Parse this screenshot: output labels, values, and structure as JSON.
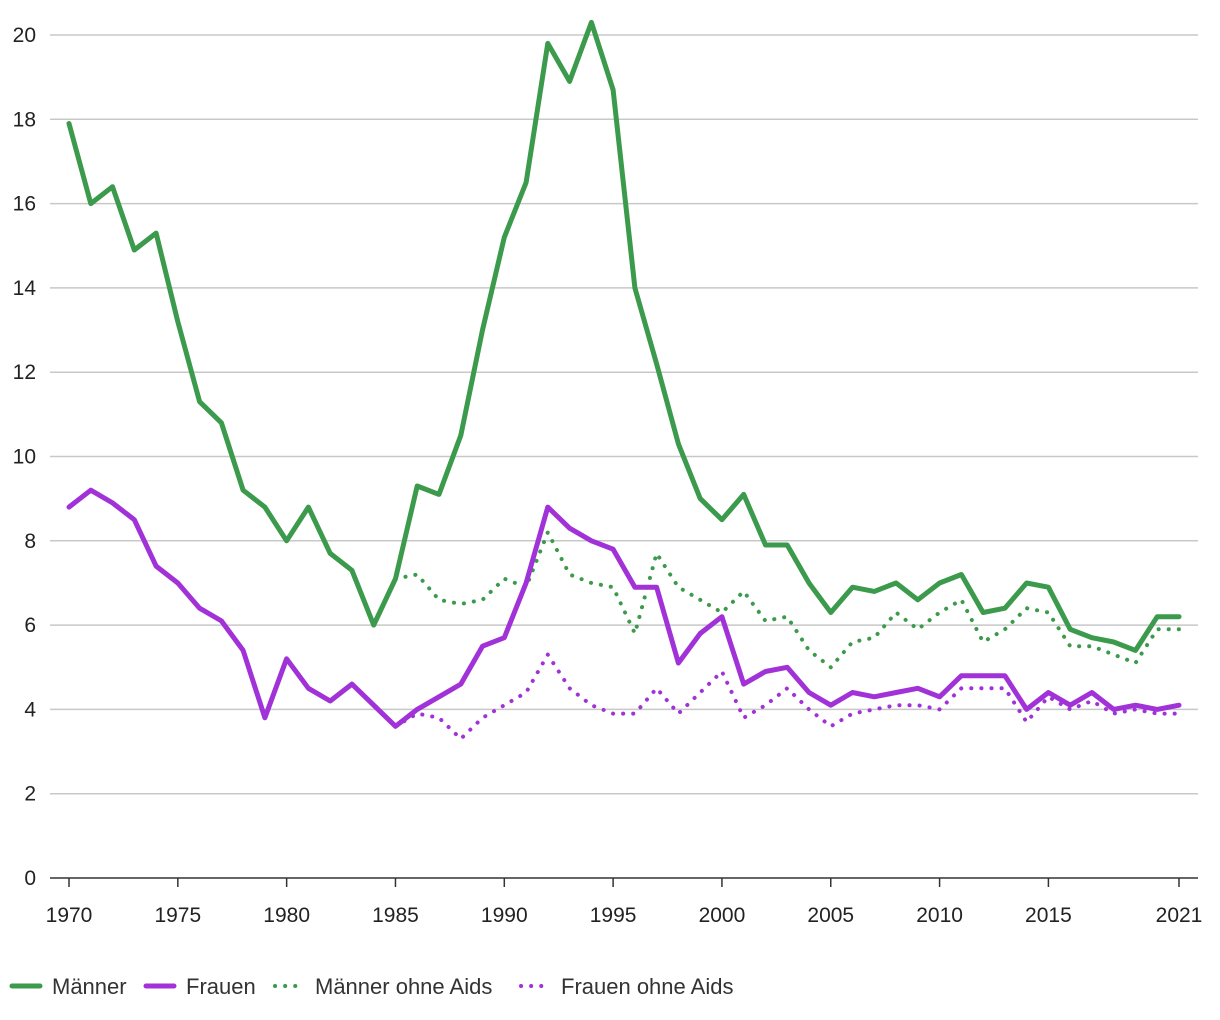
{
  "chart_data": {
    "type": "line",
    "title": "",
    "xlabel": "",
    "ylabel": "",
    "xlim": [
      1970,
      2021
    ],
    "ylim": [
      0,
      20.5
    ],
    "grid": true,
    "legend_position": "bottom-left",
    "x_ticks": [
      1970,
      1975,
      1980,
      1985,
      1990,
      1995,
      2000,
      2005,
      2010,
      2015,
      2021
    ],
    "y_ticks": [
      0,
      2,
      4,
      6,
      8,
      10,
      12,
      14,
      16,
      18,
      20
    ],
    "series": [
      {
        "name": "Männer",
        "color": "#3c9a4c",
        "style": "solid",
        "x": [
          1970,
          1971,
          1972,
          1973,
          1974,
          1975,
          1976,
          1977,
          1978,
          1979,
          1980,
          1981,
          1982,
          1983,
          1984,
          1985,
          1986,
          1987,
          1988,
          1989,
          1990,
          1991,
          1992,
          1993,
          1994,
          1995,
          1996,
          1997,
          1998,
          1999,
          2000,
          2001,
          2002,
          2003,
          2004,
          2005,
          2006,
          2007,
          2008,
          2009,
          2010,
          2011,
          2012,
          2013,
          2014,
          2015,
          2016,
          2017,
          2018,
          2019,
          2020,
          2021
        ],
        "values": [
          17.9,
          16.0,
          16.4,
          14.9,
          15.3,
          13.2,
          11.3,
          10.8,
          9.2,
          8.8,
          8.0,
          8.8,
          7.7,
          7.3,
          6.0,
          7.1,
          9.3,
          9.1,
          10.5,
          13.0,
          15.2,
          16.5,
          19.8,
          18.9,
          20.3,
          18.7,
          14.0,
          12.2,
          10.3,
          9.0,
          8.5,
          9.1,
          7.9,
          7.9,
          7.0,
          6.3,
          6.9,
          6.8,
          7.0,
          6.6,
          7.0,
          7.2,
          6.3,
          6.4,
          7.0,
          6.9,
          5.9,
          5.7,
          5.6,
          5.4,
          6.2,
          6.2
        ]
      },
      {
        "name": "Frauen",
        "color": "#a132d8",
        "style": "solid",
        "x": [
          1970,
          1971,
          1972,
          1973,
          1974,
          1975,
          1976,
          1977,
          1978,
          1979,
          1980,
          1981,
          1982,
          1983,
          1984,
          1985,
          1986,
          1987,
          1988,
          1989,
          1990,
          1991,
          1992,
          1993,
          1994,
          1995,
          1996,
          1997,
          1998,
          1999,
          2000,
          2001,
          2002,
          2003,
          2004,
          2005,
          2006,
          2007,
          2008,
          2009,
          2010,
          2011,
          2012,
          2013,
          2014,
          2015,
          2016,
          2017,
          2018,
          2019,
          2020,
          2021
        ],
        "values": [
          8.8,
          9.2,
          8.9,
          8.5,
          7.4,
          7.0,
          6.4,
          6.1,
          5.4,
          3.8,
          5.2,
          4.5,
          4.2,
          4.6,
          4.1,
          3.6,
          4.0,
          4.3,
          4.6,
          5.5,
          5.7,
          7.0,
          8.8,
          8.3,
          8.0,
          7.8,
          6.9,
          6.9,
          5.1,
          5.8,
          6.2,
          4.6,
          4.9,
          5.0,
          4.4,
          4.1,
          4.4,
          4.3,
          4.4,
          4.5,
          4.3,
          4.8,
          4.8,
          4.8,
          4.0,
          4.4,
          4.1,
          4.4,
          4.0,
          4.1,
          4.0,
          4.1
        ]
      },
      {
        "name": "Männer ohne Aids",
        "color": "#3c9a4c",
        "style": "dotted",
        "x": [
          1985,
          1986,
          1987,
          1988,
          1989,
          1990,
          1991,
          1992,
          1993,
          1994,
          1995,
          1996,
          1997,
          1998,
          1999,
          2000,
          2001,
          2002,
          2003,
          2004,
          2005,
          2006,
          2007,
          2008,
          2009,
          2010,
          2011,
          2012,
          2013,
          2014,
          2015,
          2016,
          2017,
          2018,
          2019,
          2020,
          2021
        ],
        "values": [
          7.1,
          7.2,
          6.6,
          6.5,
          6.6,
          7.1,
          6.9,
          8.2,
          7.2,
          7.0,
          6.9,
          5.8,
          7.7,
          6.9,
          6.6,
          6.3,
          6.8,
          6.1,
          6.2,
          5.4,
          5.0,
          5.6,
          5.7,
          6.3,
          5.9,
          6.3,
          6.6,
          5.6,
          5.9,
          6.4,
          6.3,
          5.5,
          5.5,
          5.3,
          5.1,
          5.9,
          5.9
        ]
      },
      {
        "name": "Frauen ohne Aids",
        "color": "#a132d8",
        "style": "dotted",
        "x": [
          1985,
          1986,
          1987,
          1988,
          1989,
          1990,
          1991,
          1992,
          1993,
          1994,
          1995,
          1996,
          1997,
          1998,
          1999,
          2000,
          2001,
          2002,
          2003,
          2004,
          2005,
          2006,
          2007,
          2008,
          2009,
          2010,
          2011,
          2012,
          2013,
          2014,
          2015,
          2016,
          2017,
          2018,
          2019,
          2020,
          2021
        ],
        "values": [
          3.6,
          3.9,
          3.8,
          3.3,
          3.8,
          4.1,
          4.4,
          5.3,
          4.5,
          4.1,
          3.9,
          3.9,
          4.5,
          3.9,
          4.4,
          4.9,
          3.8,
          4.1,
          4.5,
          4.0,
          3.6,
          3.9,
          4.0,
          4.1,
          4.1,
          4.0,
          4.5,
          4.5,
          4.5,
          3.7,
          4.3,
          4.0,
          4.2,
          3.9,
          4.0,
          3.9,
          3.9
        ]
      }
    ]
  }
}
